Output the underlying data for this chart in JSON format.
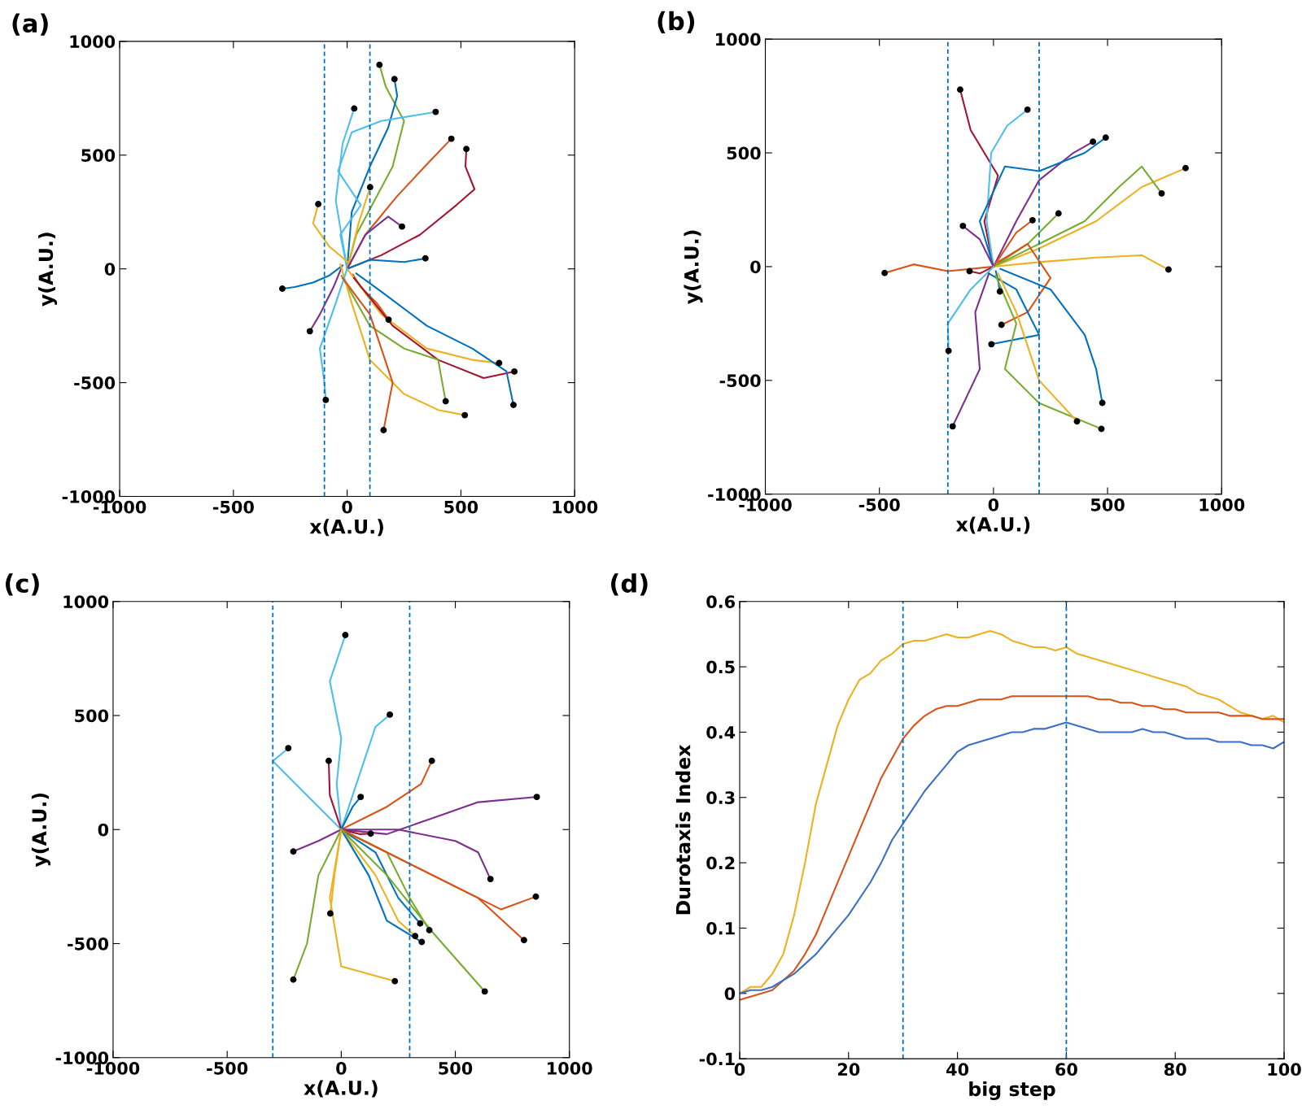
{
  "chart_data": [
    {
      "type": "line",
      "title": "(a)",
      "xlabel": "x(A.U.)",
      "ylabel": "y(A.U.)",
      "xlim": [
        -1000,
        1000
      ],
      "ylim": [
        -1000,
        1000
      ],
      "xticks": [
        -1000,
        -500,
        0,
        500,
        1000
      ],
      "yticks": [
        -1000,
        -500,
        0,
        500,
        1000
      ],
      "ref_lines": [
        {
          "axis": "x",
          "value": -100,
          "color": "#0072bd",
          "line_style": "dashed"
        },
        {
          "axis": "x",
          "value": 100,
          "color": "#0072bd",
          "line_style": "dashed"
        }
      ],
      "series": [
        {
          "color": "#77ac30",
          "x": [
            0,
            40,
            120,
            200,
            250,
            170,
            142
          ],
          "values": [
            0,
            150,
            300,
            450,
            650,
            800,
            897
          ]
        },
        {
          "color": "#0072bd",
          "x": [
            0,
            20,
            100,
            180,
            220,
            208
          ],
          "values": [
            0,
            250,
            450,
            620,
            760,
            834
          ]
        },
        {
          "color": "#4dbeee",
          "x": [
            0,
            -30,
            60,
            -40,
            20,
            150,
            389
          ],
          "values": [
            0,
            150,
            280,
            430,
            600,
            650,
            690
          ]
        },
        {
          "color": "#4dbeee",
          "x": [
            0,
            -50,
            -20,
            31
          ],
          "values": [
            0,
            300,
            550,
            705
          ]
        },
        {
          "color": "#d95319",
          "x": [
            0,
            80,
            220,
            360,
            458
          ],
          "values": [
            0,
            150,
            320,
            470,
            572
          ]
        },
        {
          "color": "#a2142f",
          "x": [
            0,
            150,
            320,
            480,
            560,
            520,
            524
          ],
          "values": [
            0,
            60,
            150,
            280,
            350,
            450,
            527
          ]
        },
        {
          "color": "#edb120",
          "x": [
            0,
            50,
            101
          ],
          "values": [
            0,
            200,
            359
          ]
        },
        {
          "color": "#edb120",
          "x": [
            15,
            -80,
            -150,
            -127
          ],
          "values": [
            20,
            100,
            200,
            285
          ]
        },
        {
          "color": "#7e2f8e",
          "x": [
            0,
            80,
            180,
            241
          ],
          "values": [
            0,
            150,
            230,
            186
          ]
        },
        {
          "color": "#0072bd",
          "x": [
            0,
            100,
            250,
            344
          ],
          "values": [
            0,
            40,
            30,
            46
          ]
        },
        {
          "color": "#0072bd",
          "x": [
            -20,
            -80,
            -150,
            -230,
            -285
          ],
          "values": [
            15,
            -30,
            -60,
            -80,
            -87
          ]
        },
        {
          "color": "#7e2f8e",
          "x": [
            -25,
            -60,
            -120,
            -164
          ],
          "values": [
            5,
            -80,
            -200,
            -274
          ]
        },
        {
          "color": "#d95319",
          "x": [
            25,
            60,
            130,
            182
          ],
          "values": [
            -25,
            -80,
            -150,
            -223
          ]
        },
        {
          "color": "#edb120",
          "x": [
            0,
            150,
            350,
            550,
            668
          ],
          "values": [
            0,
            -200,
            -350,
            -400,
            -414
          ]
        },
        {
          "color": "#a2142f",
          "x": [
            30,
            200,
            400,
            600,
            735
          ],
          "values": [
            -40,
            -250,
            -400,
            -480,
            -451
          ]
        },
        {
          "color": "#77ac30",
          "x": [
            -25,
            100,
            250,
            400,
            433
          ],
          "values": [
            -30,
            -250,
            -350,
            -400,
            -582
          ]
        },
        {
          "color": "#0072bd",
          "x": [
            40,
            150,
            350,
            550,
            700,
            731
          ],
          "values": [
            -20,
            -100,
            -250,
            -350,
            -450,
            -598
          ]
        },
        {
          "color": "#edb120",
          "x": [
            -30,
            20,
            100,
            250,
            400,
            517
          ],
          "values": [
            20,
            -150,
            -400,
            -550,
            -620,
            -643
          ]
        },
        {
          "color": "#4dbeee",
          "x": [
            0,
            -50,
            -120,
            -100,
            -94
          ],
          "values": [
            0,
            -150,
            -350,
            -500,
            -576
          ]
        },
        {
          "color": "#d95319",
          "x": [
            -20,
            100,
            200,
            160
          ],
          "values": [
            -40,
            -200,
            -500,
            -709
          ]
        },
        {
          "type": "scatter",
          "marker": "circle",
          "color": "#000000",
          "x": [
            142,
            208,
            31,
            389,
            458,
            524,
            101,
            -127,
            241,
            344,
            -285,
            -164,
            182,
            668,
            735,
            433,
            731,
            517,
            -94,
            160
          ],
          "values": [
            897,
            834,
            705,
            690,
            572,
            527,
            359,
            285,
            186,
            46,
            -87,
            -274,
            -223,
            -414,
            -451,
            -582,
            -598,
            -643,
            -576,
            -709
          ]
        }
      ]
    },
    {
      "type": "line",
      "title": "(b)",
      "xlabel": "x(A.U.)",
      "ylabel": "y(A.U.)",
      "xlim": [
        -1000,
        1000
      ],
      "ylim": [
        -1000,
        1000
      ],
      "xticks": [
        -1000,
        -500,
        0,
        500,
        1000
      ],
      "yticks": [
        -1000,
        -500,
        0,
        500,
        1000
      ],
      "ref_lines": [
        {
          "axis": "x",
          "value": -200,
          "color": "#0072bd",
          "line_style": "dashed"
        },
        {
          "axis": "x",
          "value": 200,
          "color": "#0072bd",
          "line_style": "dashed"
        }
      ],
      "series": [
        {
          "color": "#a2142f",
          "x": [
            0,
            -40,
            20,
            -100,
            -146
          ],
          "values": [
            0,
            200,
            400,
            600,
            778
          ]
        },
        {
          "color": "#4dbeee",
          "x": [
            0,
            -30,
            -10,
            60,
            149
          ],
          "values": [
            0,
            200,
            500,
            620,
            690
          ]
        },
        {
          "color": "#7e2f8e",
          "x": [
            0,
            100,
            200,
            350,
            436
          ],
          "values": [
            0,
            200,
            380,
            500,
            549
          ]
        },
        {
          "color": "#0072bd",
          "x": [
            0,
            -60,
            50,
            200,
            400,
            492
          ],
          "values": [
            0,
            200,
            440,
            420,
            500,
            567
          ]
        },
        {
          "color": "#edb120",
          "x": [
            0,
            200,
            450,
            650,
            842
          ],
          "values": [
            0,
            80,
            200,
            350,
            433
          ]
        },
        {
          "color": "#77ac30",
          "x": [
            0,
            200,
            400,
            550,
            650,
            737
          ],
          "values": [
            0,
            100,
            200,
            350,
            440,
            322
          ]
        },
        {
          "color": "#edb120",
          "x": [
            0,
            200,
            450,
            650,
            767
          ],
          "values": [
            0,
            20,
            40,
            50,
            -13
          ]
        },
        {
          "color": "#77ac30",
          "x": [
            0,
            150,
            285
          ],
          "values": [
            0,
            100,
            234
          ]
        },
        {
          "color": "#d95319",
          "x": [
            0,
            100,
            171
          ],
          "values": [
            0,
            150,
            204
          ]
        },
        {
          "color": "#7e2f8e",
          "x": [
            0,
            -60,
            -134
          ],
          "values": [
            0,
            120,
            179
          ]
        },
        {
          "color": "#d95319",
          "x": [
            0,
            -200,
            -350,
            -477
          ],
          "values": [
            0,
            -20,
            10,
            -28
          ]
        },
        {
          "color": "#a2142f",
          "x": [
            0,
            -60,
            -105
          ],
          "values": [
            0,
            -30,
            -20
          ]
        },
        {
          "color": "#0072bd",
          "x": [
            10,
            20,
            28
          ],
          "values": [
            -20,
            -60,
            -109
          ]
        },
        {
          "color": "#d95319",
          "x": [
            20,
            150,
            250,
            150,
            35
          ],
          "values": [
            20,
            100,
            -50,
            -200,
            -256
          ]
        },
        {
          "color": "#0072bd",
          "x": [
            -20,
            100,
            200,
            -9
          ],
          "values": [
            -30,
            -100,
            -300,
            -341
          ]
        },
        {
          "color": "#4dbeee",
          "x": [
            0,
            -100,
            -200,
            -197
          ],
          "values": [
            0,
            -100,
            -250,
            -370
          ]
        },
        {
          "color": "#0072bd",
          "x": [
            30,
            250,
            400,
            450,
            477
          ],
          "values": [
            -10,
            -100,
            -300,
            -450,
            -599
          ]
        },
        {
          "color": "#77ac30",
          "x": [
            10,
            100,
            50,
            200,
            473
          ],
          "values": [
            -40,
            -250,
            -450,
            -600,
            -713
          ]
        },
        {
          "color": "#edb120",
          "x": [
            20,
            100,
            200,
            366
          ],
          "values": [
            -30,
            -200,
            -500,
            -680
          ]
        },
        {
          "color": "#7e2f8e",
          "x": [
            -20,
            -80,
            -60,
            -179
          ],
          "values": [
            -30,
            -200,
            -450,
            -702
          ]
        },
        {
          "type": "scatter",
          "marker": "circle",
          "color": "#000000",
          "x": [
            -146,
            149,
            436,
            492,
            842,
            737,
            767,
            285,
            171,
            -134,
            -477,
            -105,
            28,
            35,
            -9,
            -197,
            477,
            473,
            366,
            -179
          ],
          "values": [
            778,
            690,
            549,
            567,
            433,
            322,
            -13,
            234,
            204,
            179,
            -28,
            -20,
            -109,
            -256,
            -341,
            -370,
            -599,
            -713,
            -680,
            -702
          ]
        }
      ]
    },
    {
      "type": "line",
      "title": "(c)",
      "xlabel": "x(A.U.)",
      "ylabel": "y(A.U.)",
      "xlim": [
        -1000,
        1000
      ],
      "ylim": [
        -1000,
        1000
      ],
      "xticks": [
        -1000,
        -500,
        0,
        500,
        1000
      ],
      "yticks": [
        -1000,
        -500,
        0,
        500,
        1000
      ],
      "ref_lines": [
        {
          "axis": "x",
          "value": -300,
          "color": "#0072bd",
          "line_style": "dashed"
        },
        {
          "axis": "x",
          "value": 300,
          "color": "#0072bd",
          "line_style": "dashed"
        }
      ],
      "series": [
        {
          "color": "#4dbeee",
          "x": [
            0,
            -20,
            0,
            -50,
            18
          ],
          "values": [
            0,
            200,
            400,
            650,
            853
          ]
        },
        {
          "color": "#4dbeee",
          "x": [
            0,
            50,
            100,
            150,
            213
          ],
          "values": [
            0,
            150,
            300,
            450,
            504
          ]
        },
        {
          "color": "#4dbeee",
          "x": [
            0,
            -150,
            -300,
            -232
          ],
          "values": [
            0,
            150,
            300,
            357
          ]
        },
        {
          "color": "#a2142f",
          "x": [
            0,
            -50,
            -55
          ],
          "values": [
            0,
            150,
            301
          ]
        },
        {
          "color": "#d95319",
          "x": [
            0,
            200,
            350,
            397
          ],
          "values": [
            0,
            100,
            200,
            301
          ]
        },
        {
          "color": "#0072bd",
          "x": [
            0,
            50,
            85
          ],
          "values": [
            0,
            100,
            143
          ]
        },
        {
          "color": "#7e2f8e",
          "x": [
            0,
            200,
            400,
            600,
            857
          ],
          "values": [
            0,
            -20,
            50,
            120,
            143
          ]
        },
        {
          "color": "#a2142f",
          "x": [
            0,
            80,
            129
          ],
          "values": [
            0,
            -20,
            -18
          ]
        },
        {
          "color": "#7e2f8e",
          "x": [
            0,
            -100,
            -210
          ],
          "values": [
            0,
            -50,
            -96
          ]
        },
        {
          "color": "#7e2f8e",
          "x": [
            0,
            250,
            500,
            600,
            654
          ],
          "values": [
            0,
            0,
            -50,
            -100,
            -217
          ]
        },
        {
          "color": "#d95319",
          "x": [
            0,
            300,
            500,
            700,
            853
          ],
          "values": [
            0,
            -150,
            -250,
            -350,
            -294
          ]
        },
        {
          "color": "#edb120",
          "x": [
            0,
            -30,
            -48
          ],
          "values": [
            0,
            -200,
            -368
          ]
        },
        {
          "color": "#0072bd",
          "x": [
            0,
            150,
            250,
            346
          ],
          "values": [
            0,
            -100,
            -300,
            -412
          ]
        },
        {
          "color": "#77ac30",
          "x": [
            0,
            200,
            300,
            386
          ],
          "values": [
            0,
            -100,
            -300,
            -441
          ]
        },
        {
          "color": "#edb120",
          "x": [
            0,
            150,
            250,
            324
          ],
          "values": [
            0,
            -200,
            -400,
            -467
          ]
        },
        {
          "color": "#0072bd",
          "x": [
            0,
            120,
            200,
            353
          ],
          "values": [
            0,
            -200,
            -400,
            -493
          ]
        },
        {
          "color": "#d95319",
          "x": [
            0,
            300,
            600,
            801
          ],
          "values": [
            0,
            -150,
            -300,
            -485
          ]
        },
        {
          "color": "#77ac30",
          "x": [
            0,
            -100,
            -150,
            -210
          ],
          "values": [
            0,
            -200,
            -500,
            -658
          ]
        },
        {
          "color": "#edb120",
          "x": [
            0,
            -50,
            0,
            235
          ],
          "values": [
            0,
            -300,
            -600,
            -665
          ]
        },
        {
          "color": "#77ac30",
          "x": [
            0,
            200,
            400,
            629
          ],
          "values": [
            0,
            -200,
            -450,
            -710
          ]
        },
        {
          "type": "scatter",
          "marker": "circle",
          "color": "#000000",
          "x": [
            18,
            213,
            -232,
            -55,
            397,
            85,
            857,
            129,
            -210,
            654,
            853,
            -48,
            346,
            386,
            324,
            353,
            801,
            -210,
            235,
            629
          ],
          "values": [
            853,
            504,
            357,
            301,
            301,
            143,
            143,
            -18,
            -96,
            -217,
            -294,
            -368,
            -412,
            -441,
            -467,
            -493,
            -485,
            -658,
            -665,
            -710
          ]
        }
      ]
    },
    {
      "type": "line",
      "title": "(d)",
      "xlabel": "big step",
      "ylabel": "Durotaxis Index",
      "xlim": [
        0,
        100
      ],
      "ylim": [
        -0.1,
        0.6
      ],
      "xticks": [
        0,
        20,
        40,
        60,
        80,
        100
      ],
      "yticks": [
        -0.1,
        0,
        0.1,
        0.2,
        0.3,
        0.4,
        0.5,
        0.6
      ],
      "ref_lines": [
        {
          "axis": "x",
          "value": 30,
          "color": "#0072bd",
          "line_style": "dashed"
        },
        {
          "axis": "x",
          "value": 60,
          "color": "#0072bd",
          "line_style": "dashed"
        }
      ],
      "x": [
        0,
        2,
        4,
        6,
        8,
        10,
        12,
        14,
        16,
        18,
        20,
        22,
        24,
        26,
        28,
        30,
        32,
        34,
        36,
        38,
        40,
        42,
        44,
        46,
        48,
        50,
        52,
        54,
        56,
        58,
        60,
        62,
        64,
        66,
        68,
        70,
        72,
        74,
        76,
        78,
        80,
        82,
        84,
        86,
        88,
        90,
        92,
        94,
        96,
        98,
        100
      ],
      "series": [
        {
          "color": "#edb120",
          "values": [
            0.0,
            0.01,
            0.01,
            0.03,
            0.06,
            0.12,
            0.2,
            0.29,
            0.35,
            0.41,
            0.45,
            0.48,
            0.49,
            0.51,
            0.52,
            0.535,
            0.54,
            0.54,
            0.545,
            0.55,
            0.545,
            0.545,
            0.55,
            0.555,
            0.55,
            0.54,
            0.535,
            0.53,
            0.53,
            0.525,
            0.53,
            0.52,
            0.515,
            0.51,
            0.505,
            0.5,
            0.495,
            0.49,
            0.485,
            0.48,
            0.475,
            0.47,
            0.46,
            0.455,
            0.45,
            0.44,
            0.43,
            0.425,
            0.42,
            0.425,
            0.415
          ]
        },
        {
          "color": "#d95319",
          "values": [
            -0.01,
            -0.005,
            0.0,
            0.005,
            0.02,
            0.035,
            0.06,
            0.09,
            0.13,
            0.17,
            0.21,
            0.25,
            0.29,
            0.33,
            0.36,
            0.39,
            0.41,
            0.425,
            0.435,
            0.44,
            0.44,
            0.445,
            0.45,
            0.45,
            0.45,
            0.455,
            0.455,
            0.455,
            0.455,
            0.455,
            0.455,
            0.455,
            0.455,
            0.45,
            0.45,
            0.445,
            0.445,
            0.44,
            0.44,
            0.435,
            0.435,
            0.43,
            0.43,
            0.43,
            0.43,
            0.425,
            0.425,
            0.425,
            0.42,
            0.42,
            0.42
          ]
        },
        {
          "color": "#3a6fc4",
          "values": [
            0.0,
            0.005,
            0.005,
            0.01,
            0.02,
            0.03,
            0.045,
            0.06,
            0.08,
            0.1,
            0.12,
            0.145,
            0.17,
            0.2,
            0.235,
            0.26,
            0.285,
            0.31,
            0.33,
            0.35,
            0.37,
            0.38,
            0.385,
            0.39,
            0.395,
            0.4,
            0.4,
            0.405,
            0.405,
            0.41,
            0.415,
            0.41,
            0.405,
            0.4,
            0.4,
            0.4,
            0.4,
            0.405,
            0.4,
            0.4,
            0.395,
            0.39,
            0.39,
            0.39,
            0.385,
            0.385,
            0.385,
            0.38,
            0.38,
            0.375,
            0.385
          ]
        }
      ]
    }
  ]
}
